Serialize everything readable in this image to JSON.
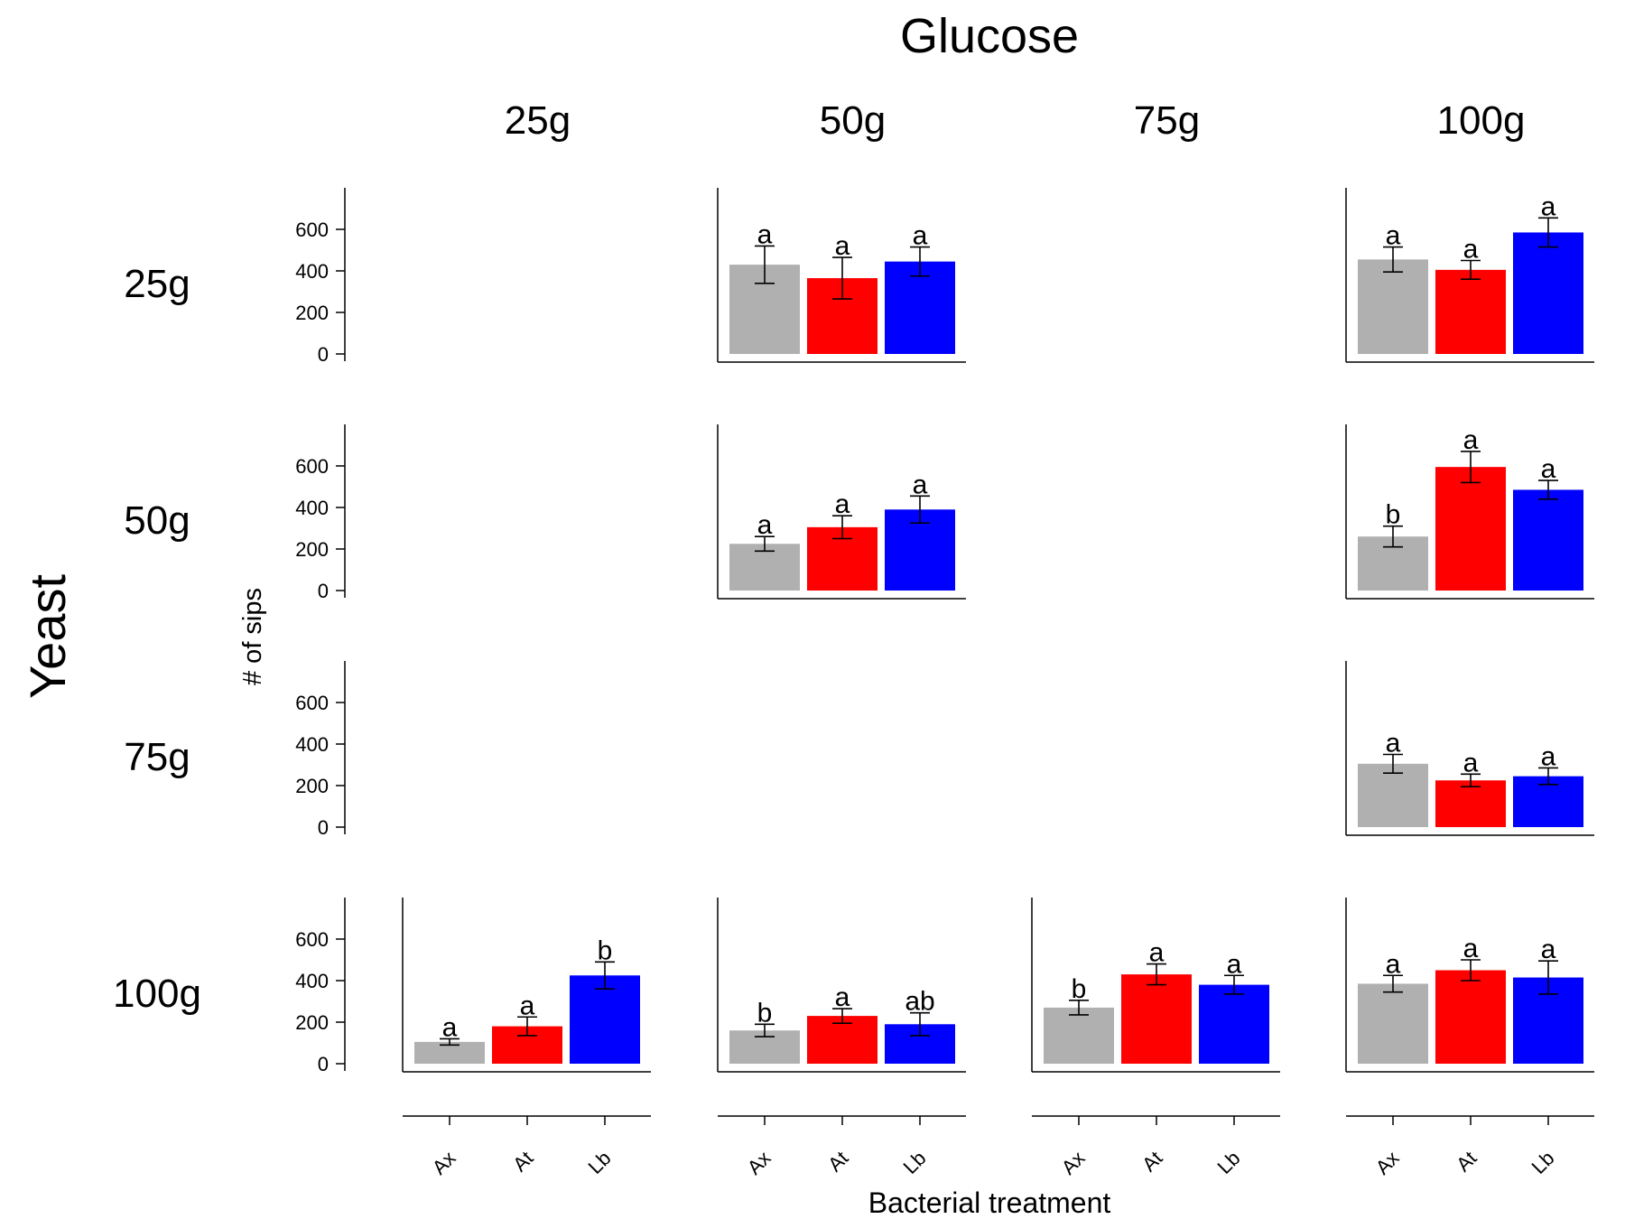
{
  "chart_data": {
    "type": "bar",
    "title": "Glucose",
    "row_title": "Yeast",
    "ylabel": "# of sips",
    "xlabel": "Bacterial treatment",
    "column_labels": [
      "25g",
      "50g",
      "75g",
      "100g"
    ],
    "row_labels": [
      "25g",
      "50g",
      "75g",
      "100g"
    ],
    "categories": [
      "Ax",
      "At",
      "Lb"
    ],
    "ylim": [
      0,
      800
    ],
    "yticks": [
      0,
      200,
      400,
      600
    ],
    "colors": {
      "Ax": "#b0b0b0",
      "At": "#ff0000",
      "Lb": "#0000ff"
    },
    "panels": [
      {
        "row": "25g",
        "column": "50g",
        "values": [
          430,
          365,
          445
        ],
        "errors": [
          90,
          100,
          70
        ],
        "letters": [
          "a",
          "a",
          "a"
        ]
      },
      {
        "row": "25g",
        "column": "100g",
        "values": [
          455,
          405,
          585
        ],
        "errors": [
          60,
          45,
          70
        ],
        "letters": [
          "a",
          "a",
          "a"
        ]
      },
      {
        "row": "50g",
        "column": "50g",
        "values": [
          225,
          305,
          390
        ],
        "errors": [
          35,
          55,
          65
        ],
        "letters": [
          "a",
          "a",
          "a"
        ]
      },
      {
        "row": "50g",
        "column": "100g",
        "values": [
          260,
          595,
          485
        ],
        "errors": [
          50,
          75,
          45
        ],
        "letters": [
          "b",
          "a",
          "a"
        ]
      },
      {
        "row": "75g",
        "column": "100g",
        "values": [
          305,
          225,
          245
        ],
        "errors": [
          45,
          30,
          40
        ],
        "letters": [
          "a",
          "a",
          "a"
        ]
      },
      {
        "row": "100g",
        "column": "25g",
        "values": [
          105,
          180,
          425
        ],
        "errors": [
          15,
          45,
          65
        ],
        "letters": [
          "a",
          "a",
          "b"
        ]
      },
      {
        "row": "100g",
        "column": "50g",
        "values": [
          160,
          230,
          190
        ],
        "errors": [
          30,
          35,
          55
        ],
        "letters": [
          "b",
          "a",
          "ab"
        ]
      },
      {
        "row": "100g",
        "column": "75g",
        "values": [
          270,
          430,
          380
        ],
        "errors": [
          35,
          50,
          45
        ],
        "letters": [
          "b",
          "a",
          "a"
        ]
      },
      {
        "row": "100g",
        "column": "100g",
        "values": [
          385,
          450,
          415
        ],
        "errors": [
          40,
          50,
          80
        ],
        "letters": [
          "a",
          "a",
          "a"
        ]
      }
    ]
  }
}
